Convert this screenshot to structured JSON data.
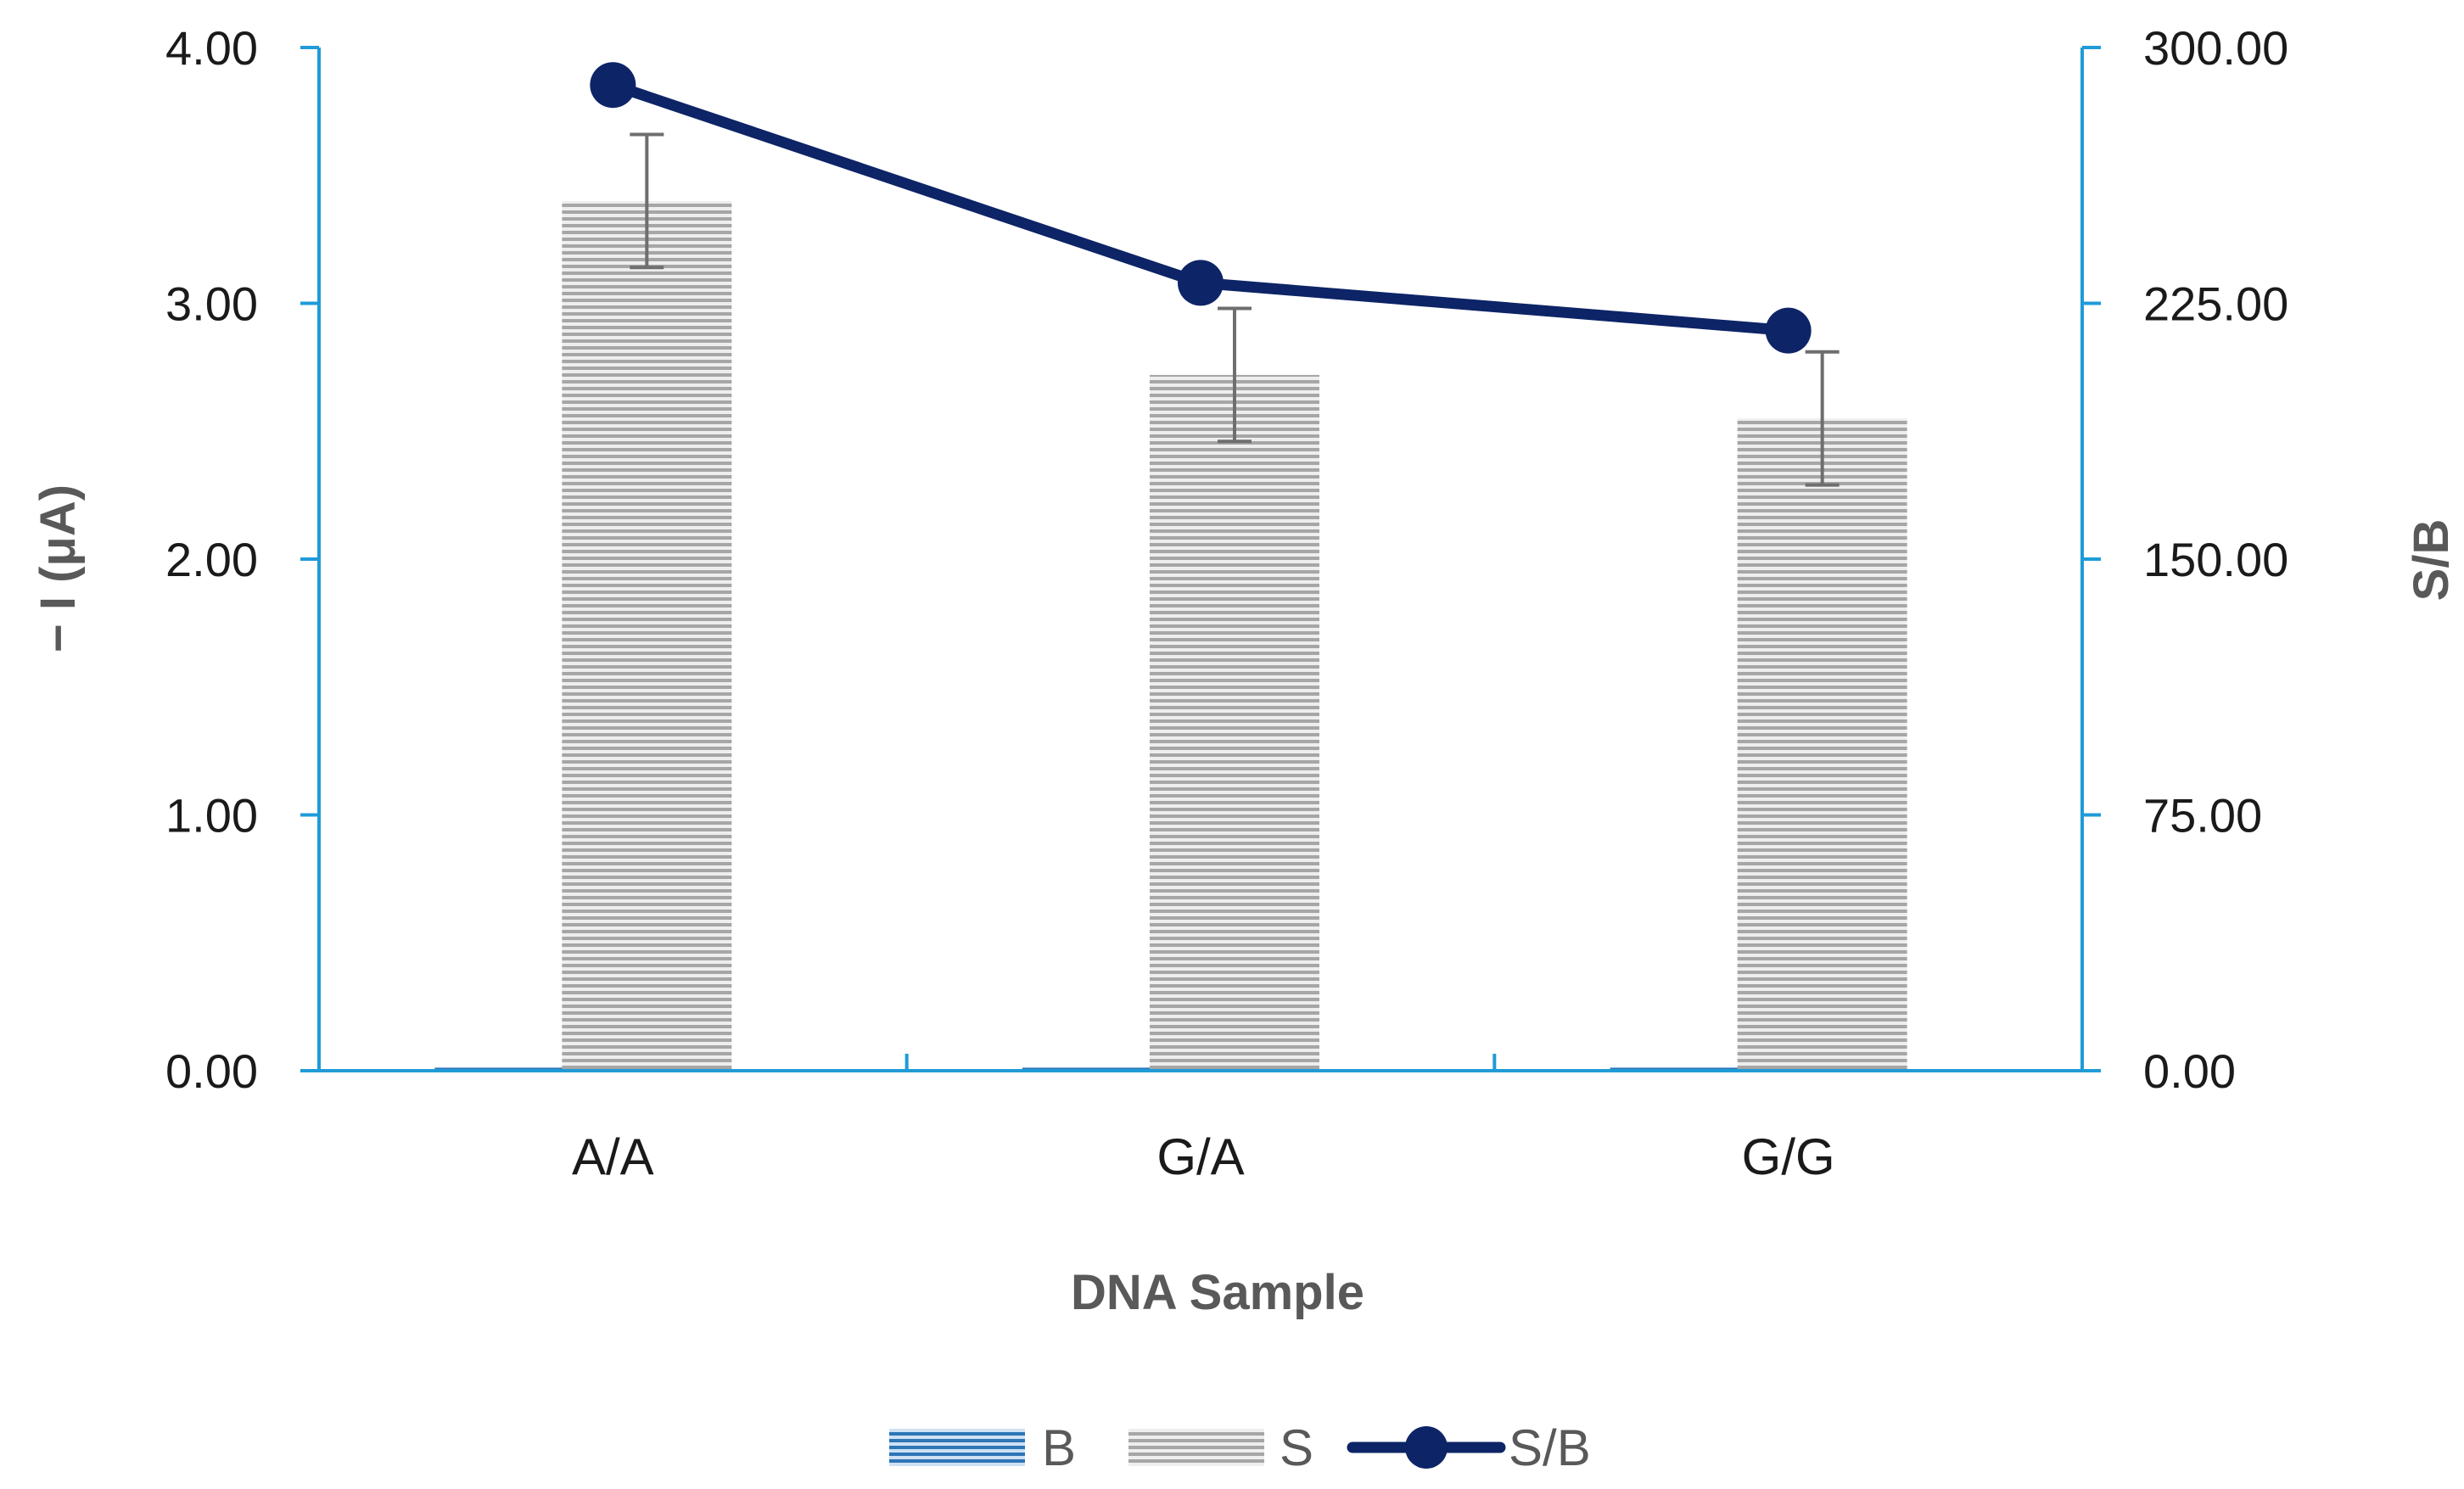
{
  "chart_data": {
    "type": "bar",
    "title": "",
    "categories": [
      "A/A",
      "G/A",
      "G/G"
    ],
    "xlabel": "DNA Sample",
    "ylabel": "− I (μA)",
    "y2label": "S/B",
    "ylim": [
      0,
      4
    ],
    "y2lim": [
      0,
      300
    ],
    "yticks": [
      "0.00",
      "1.00",
      "2.00",
      "3.00",
      "4.00"
    ],
    "y2ticks": [
      "0.00",
      "75.00",
      "150.00",
      "225.00",
      "300.00"
    ],
    "legend_position": "bottom",
    "series": [
      {
        "name": "B",
        "type": "bar",
        "axis": "left",
        "values": [
          0.012,
          0.012,
          0.012
        ],
        "color": "#2e75b6"
      },
      {
        "name": "S",
        "type": "bar",
        "axis": "left",
        "values": [
          3.4,
          2.72,
          2.55
        ],
        "error": [
          0.26,
          0.26,
          0.26
        ],
        "color": "#a6a6a6"
      },
      {
        "name": "S/B",
        "type": "line",
        "axis": "right",
        "values": [
          289,
          231,
          217
        ],
        "color": "#0d2466"
      }
    ],
    "axis_color": "#1f9bd7"
  }
}
